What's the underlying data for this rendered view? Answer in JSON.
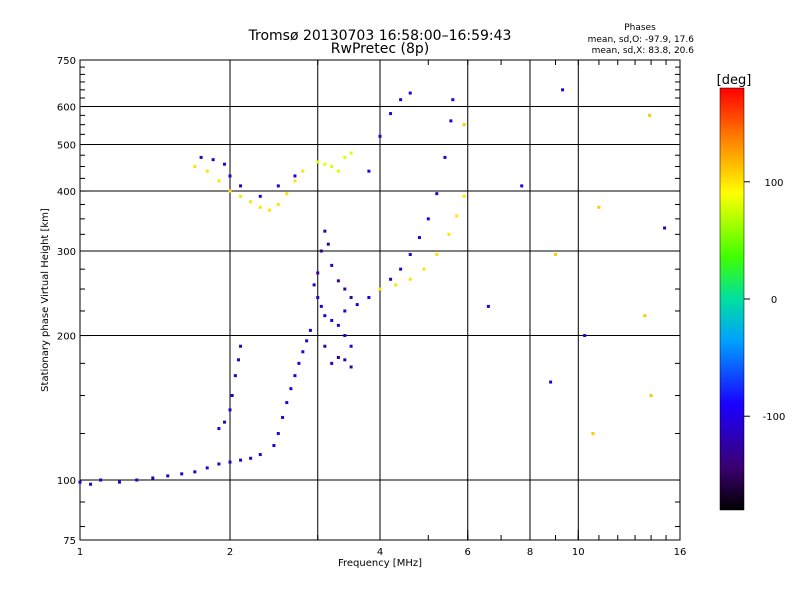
{
  "header": {
    "title_line1": "Tromsø 20130703 16:58:00–16:59:43",
    "title_line2": "RwPretec (8p)",
    "phases_title": "Phases",
    "phases_O": "mean, sd,O: -97.9, 17.6",
    "phases_X": "mean, sd,X:  83.8, 20.6"
  },
  "chart_data": {
    "type": "scatter",
    "xlabel": "Frequency [MHz]",
    "ylabel": "Stationary phase Virtual Height [km]",
    "xscale": "log",
    "yscale": "log",
    "xlim": [
      1,
      16
    ],
    "ylim": [
      75,
      750
    ],
    "grid": true,
    "xticks": [
      {
        "value": 1,
        "label": "1"
      },
      {
        "value": 2,
        "label": "2"
      },
      {
        "value": 4,
        "label": "4"
      },
      {
        "value": 6,
        "label": "6"
      },
      {
        "value": 8,
        "label": "8"
      },
      {
        "value": 10,
        "label": "10"
      },
      {
        "value": 16,
        "label": "16"
      }
    ],
    "xgrid": [
      2,
      3,
      4,
      6,
      8,
      10
    ],
    "yticks": [
      {
        "value": 75,
        "label": "75"
      },
      {
        "value": 100,
        "label": "100"
      },
      {
        "value": 200,
        "label": "200"
      },
      {
        "value": 300,
        "label": "300"
      },
      {
        "value": 400,
        "label": "400"
      },
      {
        "value": 500,
        "label": "500"
      },
      {
        "value": 600,
        "label": "600"
      },
      {
        "value": 750,
        "label": "750"
      }
    ],
    "ygrid": [
      100,
      200,
      300,
      400,
      500,
      600
    ],
    "colorbar": {
      "label": "[deg]",
      "range": [
        -180,
        180
      ],
      "ticks": [
        {
          "value": 100,
          "label": "100"
        },
        {
          "value": 0,
          "label": "0"
        },
        {
          "value": -100,
          "label": "-100"
        }
      ]
    },
    "traces": [
      {
        "phase": -110,
        "points": [
          [
            1.0,
            99
          ],
          [
            1.05,
            98
          ],
          [
            1.1,
            100
          ],
          [
            1.2,
            99
          ],
          [
            1.3,
            100
          ],
          [
            1.4,
            101
          ],
          [
            1.5,
            102
          ],
          [
            1.6,
            103
          ],
          [
            1.7,
            104
          ],
          [
            1.8,
            106
          ],
          [
            1.9,
            108
          ],
          [
            2.0,
            109
          ],
          [
            2.1,
            110
          ],
          [
            2.2,
            111
          ],
          [
            2.3,
            113
          ]
        ]
      },
      {
        "phase": -110,
        "points": [
          [
            1.9,
            128
          ],
          [
            1.95,
            132
          ],
          [
            2.0,
            140
          ],
          [
            2.02,
            150
          ],
          [
            2.05,
            165
          ],
          [
            2.08,
            178
          ],
          [
            2.1,
            190
          ]
        ]
      },
      {
        "phase": -100,
        "points": [
          [
            2.45,
            118
          ],
          [
            2.5,
            125
          ],
          [
            2.55,
            135
          ],
          [
            2.6,
            145
          ],
          [
            2.65,
            155
          ],
          [
            2.7,
            165
          ],
          [
            2.75,
            175
          ],
          [
            2.8,
            185
          ],
          [
            2.85,
            195
          ],
          [
            2.9,
            205
          ]
        ]
      },
      {
        "phase": -110,
        "points": [
          [
            2.95,
            255
          ],
          [
            3.0,
            240
          ],
          [
            3.05,
            230
          ],
          [
            3.1,
            220
          ],
          [
            3.2,
            215
          ],
          [
            3.3,
            210
          ],
          [
            3.4,
            200
          ],
          [
            3.5,
            190
          ]
        ]
      },
      {
        "phase": -130,
        "points": [
          [
            3.0,
            270
          ],
          [
            3.05,
            300
          ],
          [
            3.1,
            330
          ],
          [
            3.15,
            310
          ],
          [
            3.2,
            280
          ],
          [
            3.3,
            260
          ],
          [
            3.4,
            250
          ],
          [
            3.5,
            240
          ],
          [
            3.1,
            190
          ],
          [
            3.2,
            175
          ],
          [
            3.3,
            180
          ],
          [
            3.4,
            178
          ],
          [
            3.5,
            172
          ]
        ]
      },
      {
        "phase": -105,
        "points": [
          [
            3.4,
            225
          ],
          [
            3.6,
            232
          ],
          [
            3.8,
            240
          ],
          [
            4.0,
            250
          ],
          [
            4.2,
            262
          ],
          [
            4.4,
            275
          ],
          [
            4.6,
            295
          ],
          [
            4.8,
            320
          ],
          [
            5.0,
            350
          ],
          [
            5.2,
            395
          ],
          [
            5.4,
            470
          ],
          [
            5.55,
            560
          ],
          [
            5.6,
            620
          ]
        ]
      },
      {
        "phase": -105,
        "points": [
          [
            3.8,
            440
          ],
          [
            4.0,
            520
          ],
          [
            4.2,
            580
          ],
          [
            4.4,
            620
          ],
          [
            4.6,
            640
          ]
        ]
      },
      {
        "phase": 100,
        "points": [
          [
            4.0,
            250
          ],
          [
            4.3,
            255
          ],
          [
            4.6,
            262
          ],
          [
            4.9,
            275
          ],
          [
            5.2,
            295
          ],
          [
            5.5,
            325
          ],
          [
            5.7,
            355
          ],
          [
            5.9,
            390
          ]
        ]
      },
      {
        "phase": 100,
        "points": [
          [
            1.7,
            450
          ],
          [
            1.8,
            440
          ],
          [
            1.9,
            420
          ],
          [
            2.0,
            400
          ],
          [
            2.1,
            390
          ],
          [
            2.2,
            380
          ],
          [
            2.3,
            370
          ],
          [
            2.4,
            365
          ],
          [
            2.5,
            375
          ],
          [
            2.6,
            395
          ],
          [
            2.7,
            420
          ],
          [
            2.8,
            440
          ]
        ]
      },
      {
        "phase": -110,
        "points": [
          [
            1.75,
            470
          ],
          [
            1.85,
            465
          ],
          [
            1.95,
            455
          ],
          [
            2.0,
            430
          ],
          [
            2.1,
            410
          ],
          [
            2.3,
            390
          ],
          [
            2.5,
            410
          ],
          [
            2.7,
            430
          ]
        ]
      },
      {
        "phase": 80,
        "points": [
          [
            3.0,
            460
          ],
          [
            3.1,
            455
          ],
          [
            3.2,
            450
          ],
          [
            3.3,
            440
          ],
          [
            3.4,
            470
          ],
          [
            3.5,
            480
          ]
        ]
      },
      {
        "phase": -100,
        "points": [
          [
            7.7,
            410
          ],
          [
            9.3,
            650
          ],
          [
            8.8,
            160
          ],
          [
            6.6,
            230
          ],
          [
            14.9,
            335
          ],
          [
            10.3,
            200
          ]
        ]
      },
      {
        "phase": 110,
        "points": [
          [
            9.0,
            295
          ],
          [
            13.9,
            575
          ],
          [
            11.0,
            370
          ],
          [
            13.6,
            220
          ],
          [
            10.7,
            125
          ],
          [
            14.0,
            150
          ],
          [
            5.9,
            550
          ]
        ]
      }
    ]
  }
}
